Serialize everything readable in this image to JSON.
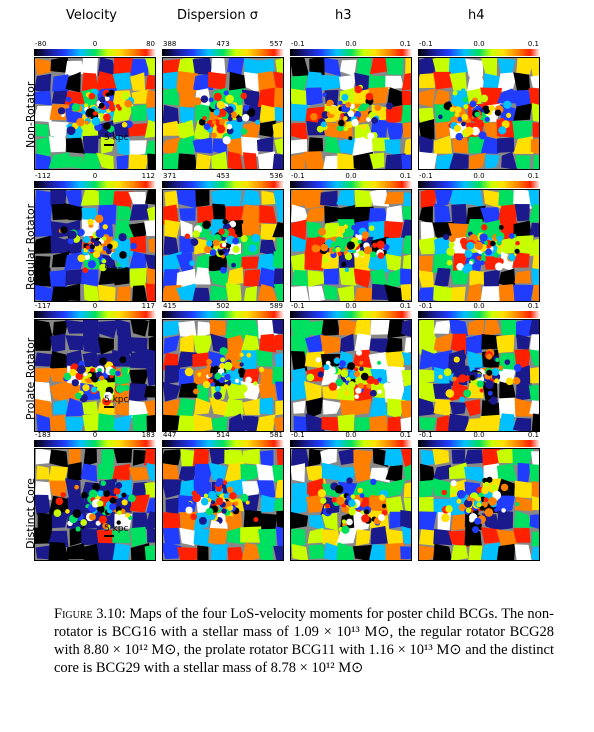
{
  "columns": [
    "Velocity",
    "Dispersion σ",
    "h3",
    "h4"
  ],
  "rows": [
    {
      "label": "Non-Rotator",
      "scale": "5 kpc",
      "bars": [
        [
          "-80",
          "0",
          "80"
        ],
        [
          "388",
          "473",
          "557"
        ],
        [
          "-0.1",
          "0.0",
          "0.1"
        ],
        [
          "-0.1",
          "0.0",
          "0.1"
        ]
      ]
    },
    {
      "label": "Regular Rotator",
      "scale": "5 kpc",
      "bars": [
        [
          "-112",
          "0",
          "112"
        ],
        [
          "371",
          "453",
          "536"
        ],
        [
          "-0.1",
          "0.0",
          "0.1"
        ],
        [
          "-0.1",
          "0.0",
          "0.1"
        ]
      ]
    },
    {
      "label": "Prolate Rotator",
      "scale": "5 kpc",
      "bars": [
        [
          "-117",
          "0",
          "117"
        ],
        [
          "415",
          "502",
          "589"
        ],
        [
          "-0.1",
          "0.0",
          "0.1"
        ],
        [
          "-0.1",
          "0.0",
          "0.1"
        ]
      ]
    },
    {
      "label": "Distinct Core",
      "scale": "5 kpc",
      "bars": [
        [
          "-183",
          "0",
          "183"
        ],
        [
          "447",
          "514",
          "581"
        ],
        [
          "-0.1",
          "0.0",
          "0.1"
        ],
        [
          "-0.1",
          "0.0",
          "0.1"
        ]
      ]
    }
  ],
  "caption": {
    "lead": "Figure 3.10:",
    "text": "Maps of the four LoS-velocity moments for poster child BCGs. The non-rotator is BCG16 with a stellar mass of 1.09 × 10¹³ M⊙, the regular rotator BCG28 with 8.80 × 10¹² M⊙, the prolate rotator BCG11 with 1.16 × 10¹³ M⊙ and the distinct core is BCG29 with a stellar mass of 8.78 × 10¹² M⊙"
  },
  "colormap": [
    "#000000",
    "#1a1a8c",
    "#1f3cff",
    "#00c0ff",
    "#00e060",
    "#c8ff00",
    "#ffe000",
    "#ff8000",
    "#ff2000",
    "#ffffff"
  ]
}
